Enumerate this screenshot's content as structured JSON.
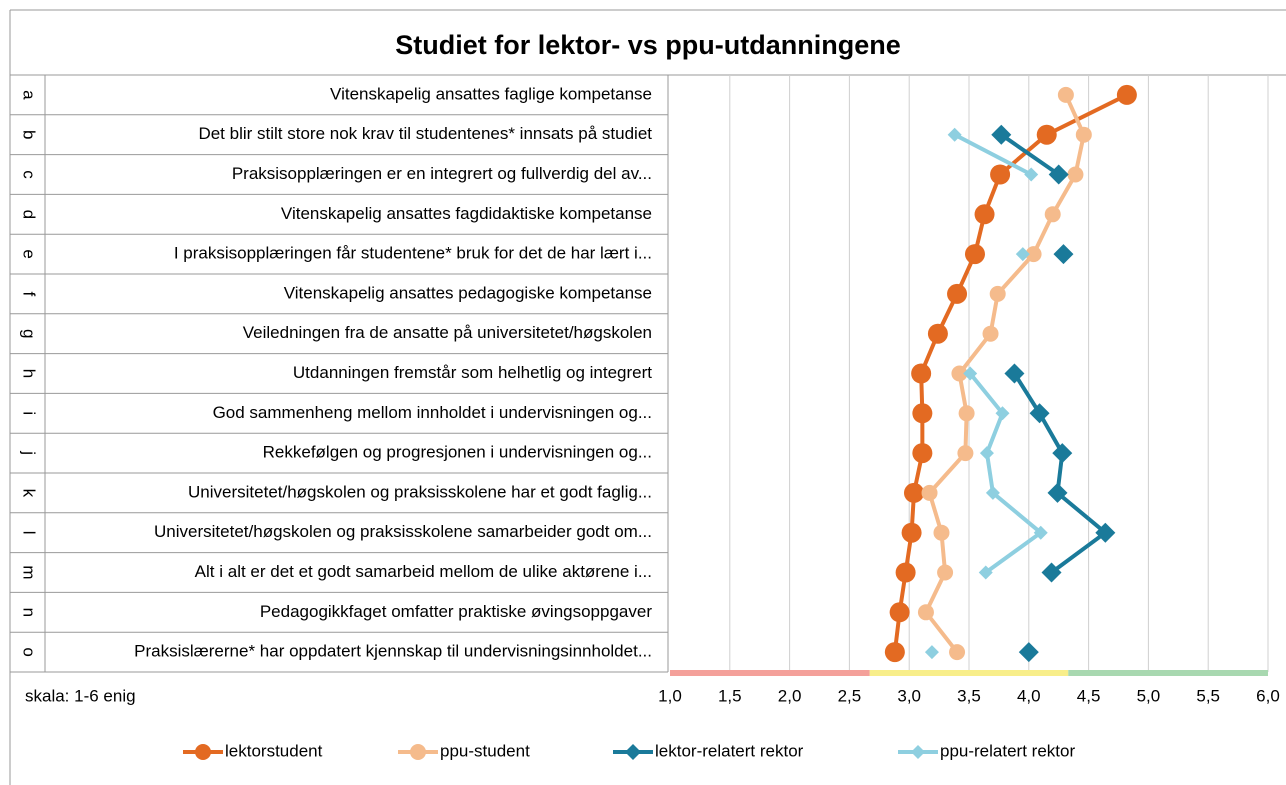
{
  "chart_data": {
    "type": "dot-line",
    "title": "Studiet for lektor- vs ppu-utdanningene",
    "note": "skala: 1-6 enig",
    "row_letters": [
      "a",
      "b",
      "c",
      "d",
      "e",
      "f",
      "g",
      "h",
      "i",
      "j",
      "k",
      "l",
      "m",
      "n",
      "o"
    ],
    "categories": [
      "Vitenskapelig ansattes faglige kompetanse",
      "Det blir stilt store nok krav til studentenes* innsats på studiet",
      "Praksisopplæringen er en integrert og fullverdig del av...",
      "Vitenskapelig ansattes fagdidaktiske kompetanse",
      "I praksisopplæringen får studentene* bruk for det de har lært i...",
      "Vitenskapelig ansattes pedagogiske kompetanse",
      "Veiledningen fra de ansatte på universitetet/høgskolen",
      "Utdanningen fremstår som helhetlig og integrert",
      "God sammenheng mellom innholdet i undervisningen og...",
      "Rekkefølgen og progresjonen i undervisningen og...",
      "Universitetet/høgskolen og praksisskolene har et godt faglig...",
      "Universitetet/høgskolen og praksisskolene samarbeider godt om...",
      "Alt i alt er det et godt samarbeid mellom de ulike aktørene i...",
      "Pedagogikkfaget omfatter praktiske øvingsoppgaver",
      "Praksislærerne* har oppdatert kjennskap til undervisningsinnholdet..."
    ],
    "series": [
      {
        "name": "lektorstudent",
        "color": "#e36a22",
        "marker": "circle",
        "size": 10,
        "values": [
          4.82,
          4.15,
          3.76,
          3.63,
          3.55,
          3.4,
          3.24,
          3.1,
          3.11,
          3.11,
          3.04,
          3.02,
          2.97,
          2.92,
          2.88
        ]
      },
      {
        "name": "ppu-student",
        "color": "#f5bb8c",
        "marker": "circle",
        "size": 8,
        "values": [
          4.31,
          4.46,
          4.39,
          4.2,
          4.04,
          3.74,
          3.68,
          3.42,
          3.48,
          3.47,
          3.17,
          3.27,
          3.3,
          3.14,
          3.4
        ]
      },
      {
        "name": "lektor-relatert rektor",
        "color": "#1a7a9a",
        "marker": "diamond",
        "size": 10,
        "values": [
          null,
          3.77,
          4.25,
          null,
          4.29,
          null,
          null,
          3.88,
          4.09,
          4.28,
          4.24,
          4.64,
          4.19,
          null,
          4.0
        ]
      },
      {
        "name": "ppu-relatert rektor",
        "color": "#8ecfe0",
        "marker": "diamond",
        "size": 7,
        "values": [
          null,
          3.38,
          4.02,
          null,
          3.95,
          null,
          null,
          3.51,
          3.78,
          3.65,
          3.7,
          4.1,
          3.64,
          null,
          3.19
        ]
      }
    ],
    "bands": [
      {
        "from": 1,
        "to": 2.67,
        "color": "#f4a09a"
      },
      {
        "from": 2.67,
        "to": 4.33,
        "color": "#f8ee8a"
      },
      {
        "from": 4.33,
        "to": 6,
        "color": "#a8d8b0"
      }
    ],
    "xlim": [
      1,
      6
    ],
    "xticks": [
      {
        "value": 1,
        "label": "1,0"
      },
      {
        "value": 1.5,
        "label": "1,5"
      },
      {
        "value": 2,
        "label": "2,0"
      },
      {
        "value": 2.5,
        "label": "2,5"
      },
      {
        "value": 3,
        "label": "3,0"
      },
      {
        "value": 3.5,
        "label": "3,5"
      },
      {
        "value": 4,
        "label": "4,0"
      },
      {
        "value": 4.5,
        "label": "4,5"
      },
      {
        "value": 5,
        "label": "5,0"
      },
      {
        "value": 5.5,
        "label": "5,5"
      },
      {
        "value": 6,
        "label": "6,0"
      }
    ],
    "grid": true
  }
}
